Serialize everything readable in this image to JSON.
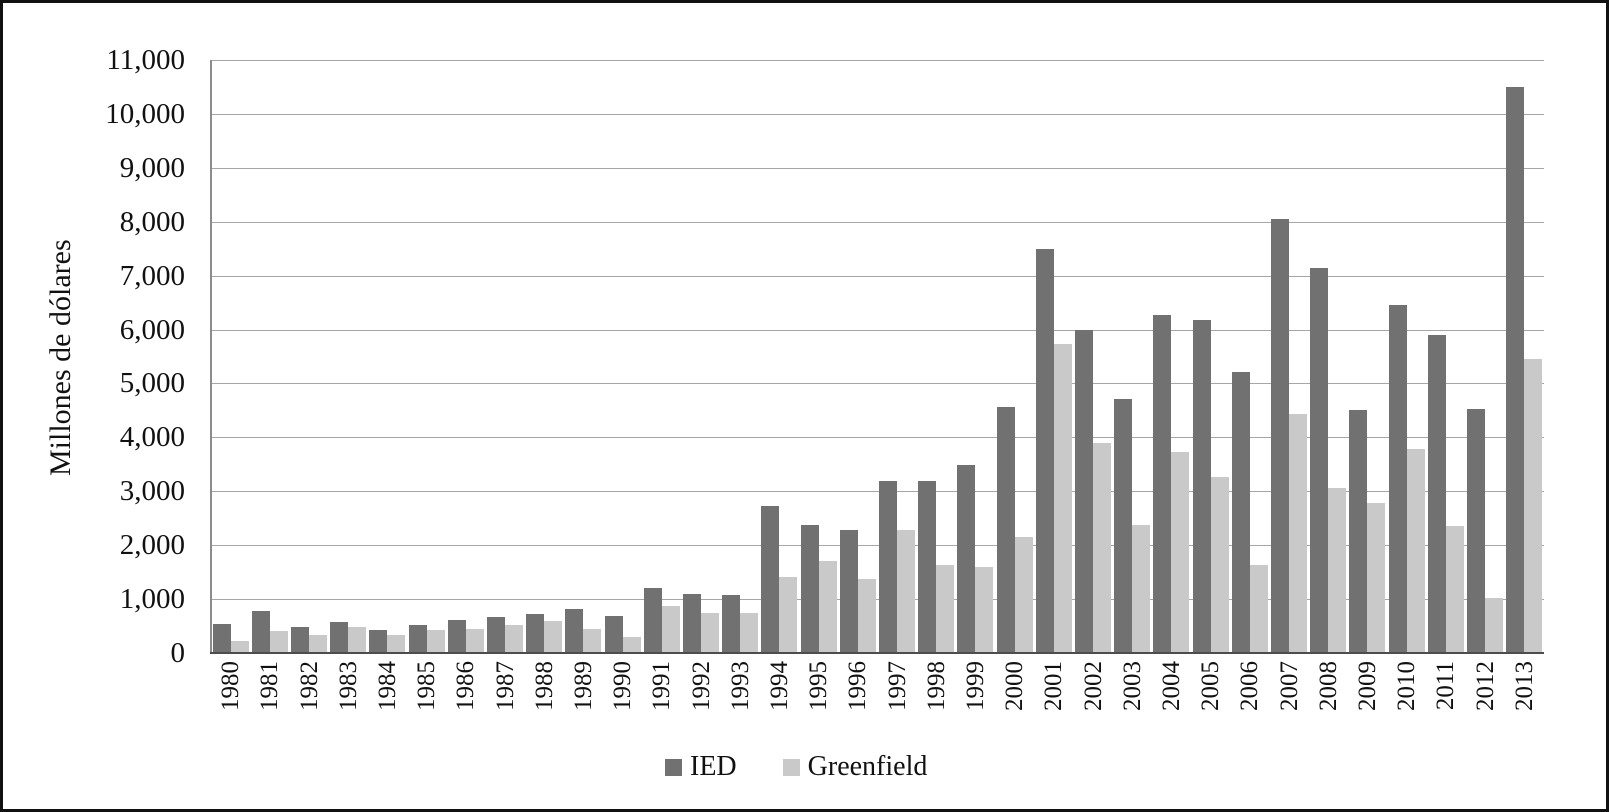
{
  "figure": {
    "background": "#ffffff",
    "border_color": "#111111"
  },
  "y_axis": {
    "title": "Millones de dólares",
    "tick_labels": [
      "0",
      "1,000",
      "2,000",
      "3,000",
      "4,000",
      "5,000",
      "6,000",
      "7,000",
      "8,000",
      "9,000",
      "10,000",
      "11,000"
    ],
    "tick_values": [
      0,
      1000,
      2000,
      3000,
      4000,
      5000,
      6000,
      7000,
      8000,
      9000,
      10000,
      11000
    ],
    "max": 11000
  },
  "x_axis": {
    "tick_labels": [
      "1980",
      "1981",
      "1982",
      "1983",
      "1984",
      "1985",
      "1986",
      "1987",
      "1988",
      "1989",
      "1990",
      "1991",
      "1992",
      "1993",
      "1994",
      "1995",
      "1996",
      "1997",
      "1998",
      "1999",
      "2000",
      "2001",
      "2002",
      "2003",
      "2004",
      "2005",
      "2006",
      "2007",
      "2008",
      "2009",
      "2010",
      "2011",
      "2012",
      "2013"
    ]
  },
  "legend": {
    "items": [
      {
        "label": "IED",
        "color": "#717171"
      },
      {
        "label": "Greenfield",
        "color": "#c9c9c9"
      }
    ]
  },
  "colors": {
    "gridline": "#a6a6a6",
    "baseline": "#4d4d4d",
    "y_axis_line": "#8c8c8c",
    "bar_dark": "#717171",
    "bar_light": "#c9c9c9"
  },
  "chart_data": {
    "type": "bar",
    "title": "",
    "xlabel": "",
    "ylabel": "Millones de dólares",
    "ylim": [
      0,
      11000
    ],
    "grid": true,
    "legend_position": "bottom-center",
    "categories": [
      "1980",
      "1981",
      "1982",
      "1983",
      "1984",
      "1985",
      "1986",
      "1987",
      "1988",
      "1989",
      "1990",
      "1991",
      "1992",
      "1993",
      "1994",
      "1995",
      "1996",
      "1997",
      "1998",
      "1999",
      "2000",
      "2001",
      "2002",
      "2003",
      "2004",
      "2005",
      "2006",
      "2007",
      "2008",
      "2009",
      "2010",
      "2011",
      "2012",
      "2013"
    ],
    "series": [
      {
        "name": "IED",
        "color": "#717171",
        "values": [
          530,
          780,
          490,
          570,
          430,
          520,
          610,
          660,
          730,
          810,
          680,
          1200,
          1100,
          1080,
          2720,
          2370,
          2290,
          3200,
          3190,
          3480,
          4570,
          7500,
          6000,
          4720,
          6270,
          6170,
          5220,
          8050,
          7150,
          4500,
          6450,
          5890,
          4530,
          10500
        ]
      },
      {
        "name": "Greenfield",
        "color": "#c9c9c9",
        "values": [
          220,
          400,
          330,
          480,
          340,
          420,
          450,
          520,
          590,
          440,
          290,
          870,
          740,
          750,
          1410,
          1710,
          1380,
          2280,
          1640,
          1600,
          2150,
          5740,
          3890,
          2380,
          3720,
          3270,
          1640,
          4430,
          3070,
          2780,
          3780,
          2350,
          1020,
          5450
        ]
      }
    ]
  }
}
